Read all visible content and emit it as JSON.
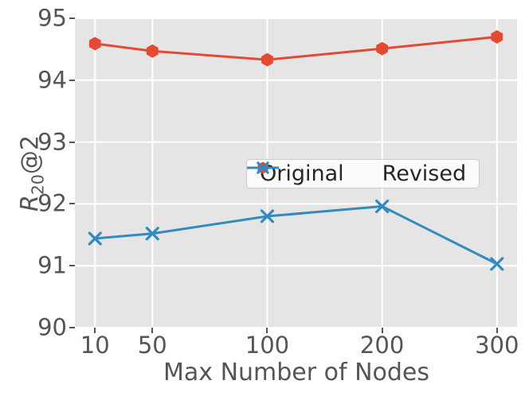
{
  "chart_data": {
    "type": "line",
    "title": "",
    "xlabel": "Max Number of Nodes",
    "ylabel": "R20@2",
    "ylabel_parts": {
      "base": "R",
      "sub": "20",
      "suffix": "@2"
    },
    "x_tick_labels": [
      "10",
      "50",
      "100",
      "200",
      "300"
    ],
    "x_positions": [
      1,
      2,
      4,
      6,
      8
    ],
    "xlim": [
      0.65,
      8.35
    ],
    "y_ticks": [
      90,
      91,
      92,
      93,
      94,
      95
    ],
    "ylim": [
      90,
      95
    ],
    "grid": true,
    "legend_position": "center-right inside axes",
    "colors": {
      "plot_bg": "#e5e5e5",
      "grid": "#ffffff",
      "tick_text": "#555555",
      "legend_text": "#262626",
      "legend_border": "#cccccc",
      "original": "#E24A33",
      "revised": "#348ABD"
    },
    "series": [
      {
        "name": "Original",
        "color": "#E24A33",
        "marker": "hexagon",
        "values": [
          94.59,
          94.47,
          94.33,
          94.51,
          94.7
        ]
      },
      {
        "name": "Revised",
        "color": "#348ABD",
        "marker": "x",
        "values": [
          91.44,
          91.52,
          91.8,
          91.96,
          91.03
        ]
      }
    ]
  }
}
